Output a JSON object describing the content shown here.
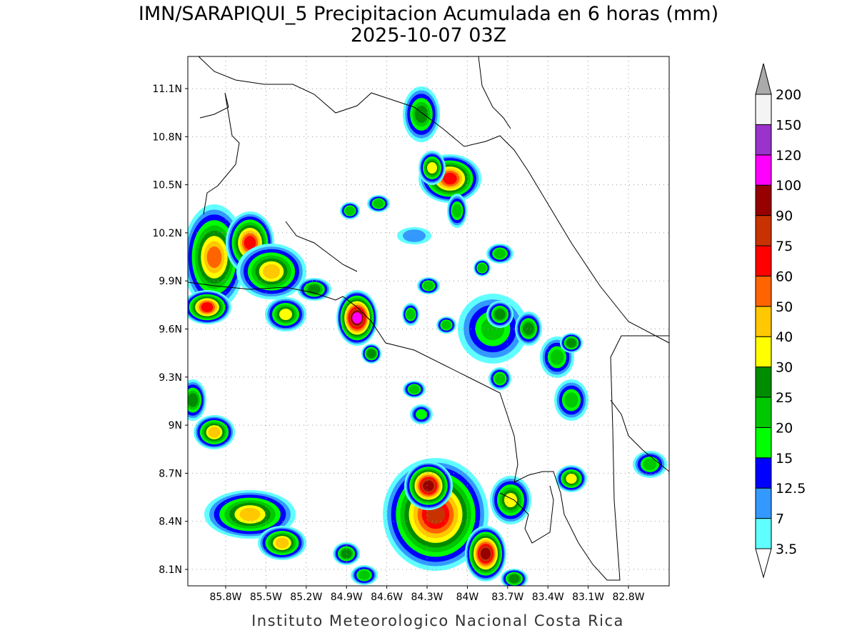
{
  "title": "IMN/SARAPIQUI_5 Precipitacion Acumulada en 6 horas (mm)",
  "subtitle": "2025-10-07 03Z",
  "map": {
    "lat_ticks": [
      "11.1N",
      "10.8N",
      "10.5N",
      "10.2N",
      "9.9N",
      "9.6N",
      "9.3N",
      "9N",
      "8.7N",
      "8.4N",
      "8.1N"
    ],
    "lon_ticks": [
      "85.8W",
      "85.5W",
      "85.2W",
      "84.9W",
      "84.6W",
      "84.3W",
      "84W",
      "83.7W",
      "83.4W",
      "83.1W",
      "82.8W"
    ],
    "grid": true
  },
  "colorbar": {
    "labels": [
      3.5,
      7,
      12.5,
      15,
      20,
      25,
      30,
      40,
      50,
      60,
      75,
      90,
      100,
      120,
      150,
      200
    ],
    "colors": [
      "#60ffff",
      "#3399ff",
      "#0000ff",
      "#00ff00",
      "#00c800",
      "#008c00",
      "#ffff00",
      "#ffc800",
      "#ff6400",
      "#ff0000",
      "#c83200",
      "#960000",
      "#ff00ff",
      "#9933cc",
      "#f4f4f4",
      "#aaaaaa"
    ]
  },
  "footer": "Instituto Meteorologico Nacional Costa Rica"
}
